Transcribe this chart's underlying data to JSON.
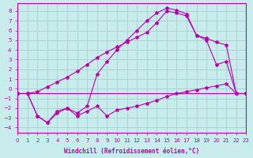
{
  "xlabel": "Windchill (Refroidissement éolien,°C)",
  "bg_color": "#c8ecec",
  "grid_color": "#aad4d4",
  "line_color": "#bb00aa",
  "xlim": [
    0,
    23
  ],
  "ylim": [
    -4.5,
    8.8
  ],
  "xticks": [
    0,
    1,
    2,
    3,
    4,
    5,
    6,
    7,
    8,
    9,
    10,
    11,
    12,
    13,
    14,
    15,
    16,
    17,
    18,
    19,
    20,
    21,
    22,
    23
  ],
  "yticks": [
    -4,
    -3,
    -2,
    -1,
    0,
    1,
    2,
    3,
    4,
    5,
    6,
    7,
    8
  ],
  "line1_x": [
    0,
    1,
    22,
    23
  ],
  "line1_y": [
    -0.5,
    -0.5,
    -0.5,
    -0.5
  ],
  "line2_x": [
    0,
    1,
    2,
    3,
    4,
    5,
    6,
    7,
    8,
    9,
    10,
    11,
    12,
    13,
    14,
    15,
    16,
    17,
    18,
    19,
    20,
    21,
    22,
    23
  ],
  "line2_y": [
    -0.5,
    -0.5,
    -2.8,
    -3.5,
    -2.3,
    -2.0,
    -2.8,
    -2.3,
    -1.8,
    -2.8,
    -2.2,
    -2.0,
    -1.8,
    -1.5,
    -1.2,
    -0.8,
    -0.5,
    -0.3,
    -0.1,
    0.1,
    0.3,
    0.5,
    -0.5,
    -0.5
  ],
  "line3_x": [
    0,
    1,
    2,
    3,
    4,
    5,
    6,
    7,
    8,
    9,
    10,
    11,
    12,
    13,
    14,
    15,
    16,
    17,
    18,
    19,
    20,
    21,
    22,
    23
  ],
  "line3_y": [
    -0.5,
    -0.5,
    -0.3,
    0.2,
    0.7,
    1.2,
    1.8,
    2.5,
    3.2,
    3.8,
    4.3,
    4.8,
    5.3,
    5.8,
    6.8,
    8.0,
    7.8,
    7.5,
    5.5,
    5.2,
    4.8,
    4.5,
    -0.5,
    -0.5
  ],
  "line4_x": [
    0,
    1,
    2,
    3,
    4,
    5,
    6,
    7,
    8,
    9,
    10,
    11,
    12,
    13,
    14,
    15,
    16,
    17,
    18,
    19,
    20,
    21,
    22,
    23
  ],
  "line4_y": [
    -0.5,
    -0.5,
    -2.8,
    -3.5,
    -2.5,
    -2.0,
    -2.5,
    -1.8,
    1.5,
    2.8,
    4.0,
    5.0,
    6.0,
    7.0,
    7.8,
    8.3,
    8.1,
    7.7,
    5.5,
    5.0,
    2.5,
    2.8,
    -0.5,
    -0.5
  ]
}
